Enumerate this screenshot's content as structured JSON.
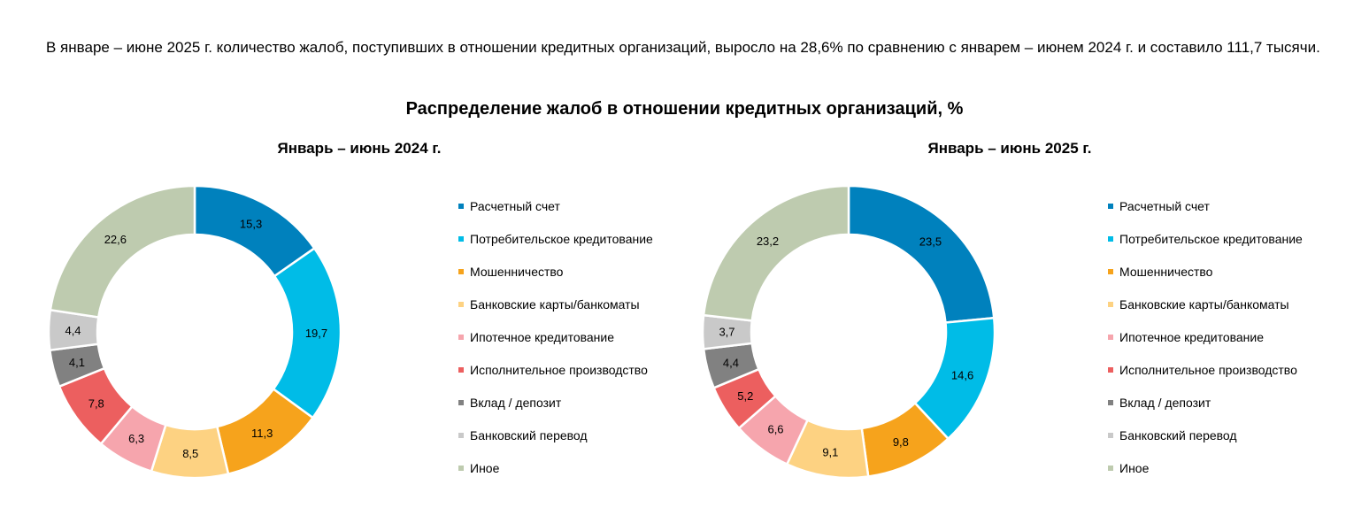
{
  "intro_text": "В январе – июне 2025 г. количество жалоб, поступивших в отношении кредитных организаций, выросло на 28,6% по сравнению с январем – июнем 2024 г. и составило 111,7 тысячи.",
  "chart_title": "Распределение жалоб в отношении кредитных организаций, %",
  "chart_data": [
    {
      "type": "pie",
      "title": "Январь – июнь 2024 г.",
      "categories": [
        "Расчетный счет",
        "Потребительское кредитование",
        "Мошенничество",
        "Банковские карты/банкоматы",
        "Ипотечное кредитование",
        "Исполнительное производство",
        "Вклад / депозит",
        "Банковский перевод",
        "Иное"
      ],
      "values": [
        15.3,
        19.7,
        11.3,
        8.5,
        6.3,
        7.8,
        4.1,
        4.4,
        22.6
      ],
      "labels": [
        "15,3",
        "19,7",
        "11,3",
        "8,5",
        "6,3",
        "7,8",
        "4,1",
        "4,4",
        "22,6"
      ],
      "colors": [
        "#0081BD",
        "#00BCE7",
        "#F6A31C",
        "#FDD282",
        "#F6A5AD",
        "#EC5F5F",
        "#818181",
        "#C9C9C9",
        "#BECBAF"
      ],
      "legend": "right"
    },
    {
      "type": "pie",
      "title": "Январь – июнь 2025 г.",
      "categories": [
        "Расчетный счет",
        "Потребительское кредитование",
        "Мошенничество",
        "Банковские карты/банкоматы",
        "Ипотечное кредитование",
        "Исполнительное производство",
        "Вклад / депозит",
        "Банковский перевод",
        "Иное"
      ],
      "values": [
        23.5,
        14.6,
        9.8,
        9.1,
        6.6,
        5.2,
        4.4,
        3.7,
        23.2
      ],
      "labels": [
        "23,5",
        "14,6",
        "9,8",
        "9,1",
        "6,6",
        "5,2",
        "4,4",
        "3,7",
        "23,2"
      ],
      "colors": [
        "#0081BD",
        "#00BCE7",
        "#F6A31C",
        "#FDD282",
        "#F6A5AD",
        "#EC5F5F",
        "#818181",
        "#C9C9C9",
        "#BECBAF"
      ],
      "legend": "right"
    }
  ]
}
